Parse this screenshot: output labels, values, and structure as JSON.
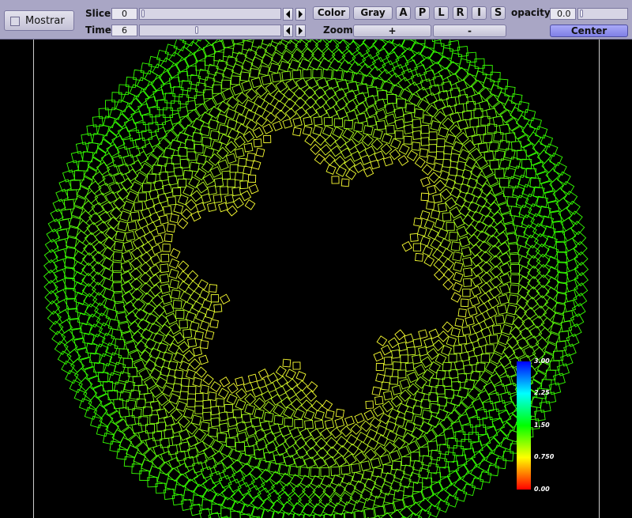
{
  "toolbar": {
    "mostrar_label": "Mostrar",
    "mostrar_checked": false,
    "slice_label": "Slice",
    "slice_value": "0",
    "time_label": "Time",
    "time_value": "6",
    "color_label": "Color",
    "gray_label": "Gray",
    "view_buttons": [
      "A",
      "P",
      "L",
      "R",
      "I",
      "S"
    ],
    "opacity_label": "opacity",
    "opacity_value": "0.0",
    "zoom_label": "Zoom",
    "zoom_in_label": "+",
    "zoom_out_label": "-",
    "center_label": "Center"
  },
  "legend": {
    "ticks": [
      "3.00",
      "2.25",
      "1.50",
      "0.750",
      "0.00"
    ],
    "min": 0,
    "max": 3
  },
  "colors": {
    "background": "#000000",
    "toolbar": "#a9a6c5",
    "center_button": "#8f8ff0",
    "mesh_outer": "#33ff00",
    "mesh_inner": "#ffff33"
  }
}
